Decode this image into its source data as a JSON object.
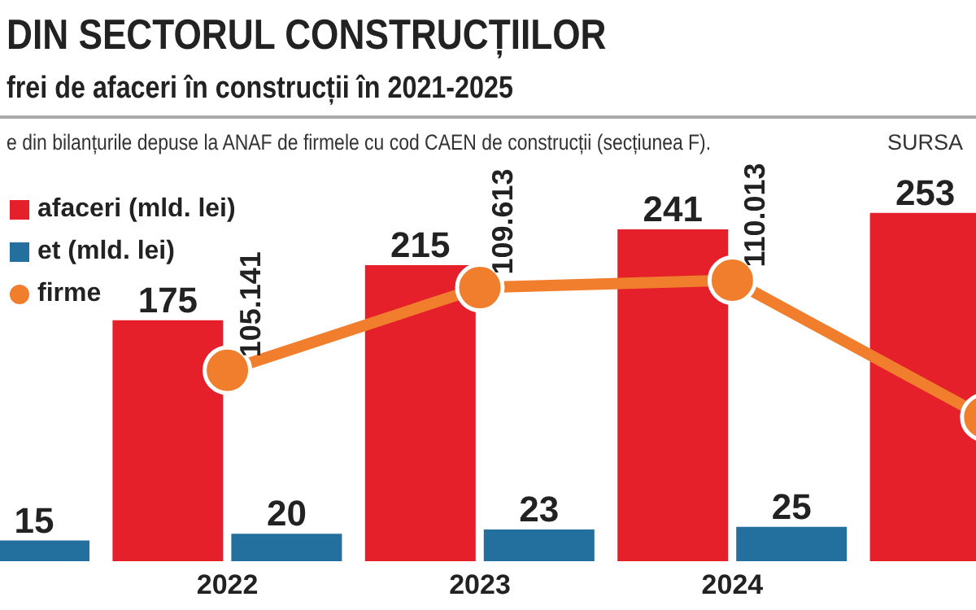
{
  "chart_data": {
    "type": "bar",
    "title": "DIN SECTORUL CONSTRUCȚIILOR",
    "subtitle": "frei de afaceri în construcții în 2021-2025",
    "annotations": [
      "e din bilanțurile depuse la ANAF de firmele cu cod CAEN de construcții (secțiunea F).",
      "SURSA"
    ],
    "categories": [
      null,
      "2022",
      "2023",
      "2024",
      null
    ],
    "series": [
      {
        "name": "afaceri (mld. lei)",
        "color": "#e5202a",
        "values": [
          null,
          175,
          215,
          241,
          253
        ]
      },
      {
        "name": "et (mld. lei)",
        "color": "#23709e",
        "values": [
          15,
          20,
          23,
          25,
          null
        ]
      },
      {
        "name": "firme",
        "type": "line",
        "axis": "y2",
        "color": "#f07e2d",
        "values": [
          null,
          105.141,
          109.613,
          110.013,
          102.6
        ],
        "value_labels": [
          null,
          "105.141",
          "109.613",
          "110.013",
          null
        ]
      }
    ],
    "data_labels": true,
    "legend": "top left",
    "marker": "circle"
  }
}
